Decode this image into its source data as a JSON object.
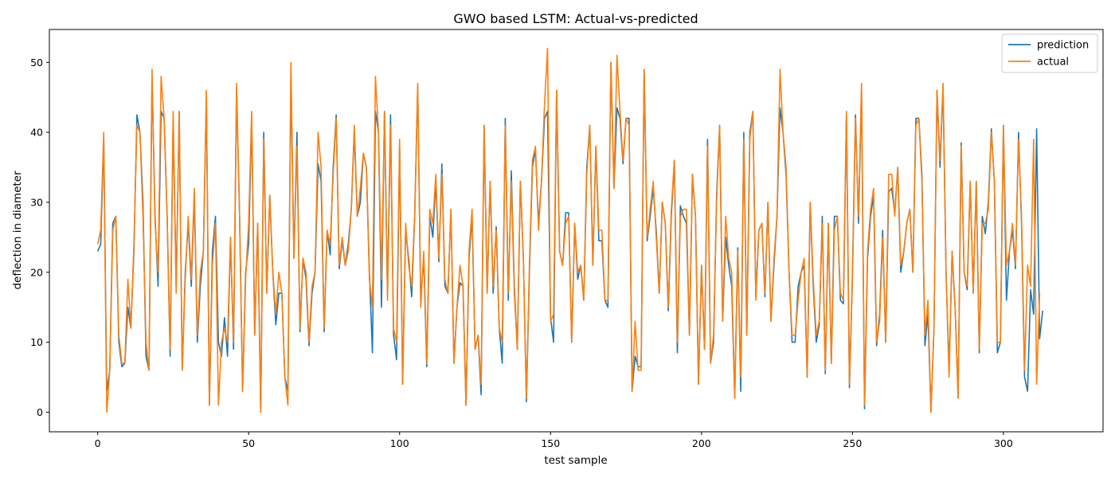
{
  "chart_data": {
    "type": "line",
    "title": "GWO based LSTM: Actual-vs-predicted",
    "xlabel": "test sample",
    "ylabel": "deflection in diameter",
    "xlim": [
      -16,
      333
    ],
    "ylim": [
      -2.8,
      54.7
    ],
    "xticks": [
      0,
      50,
      100,
      150,
      200,
      250,
      300
    ],
    "yticks": [
      0,
      10,
      20,
      30,
      40,
      50
    ],
    "grid": false,
    "legend_position": "top-right",
    "series": [
      {
        "name": "prediction",
        "color": "#1f77b4",
        "values": [
          23,
          24,
          39,
          3,
          6,
          27,
          28,
          10,
          6.5,
          7,
          15,
          12,
          23,
          42.5,
          40,
          30,
          8,
          6,
          48,
          28,
          18,
          43,
          42,
          28,
          8,
          42,
          18,
          43,
          6,
          20,
          27,
          18,
          31,
          10,
          18,
          23,
          45,
          1,
          23,
          28,
          10,
          8,
          13.5,
          8,
          25,
          9,
          46,
          28,
          3,
          20,
          24,
          42,
          11,
          27,
          0,
          40,
          17,
          31,
          20,
          12.5,
          17,
          17,
          5,
          3,
          48,
          22,
          40,
          11.5,
          22,
          19,
          9.5,
          17,
          20,
          35.5,
          33,
          11.5,
          26,
          22.5,
          35,
          42.5,
          20.5,
          24.5,
          21,
          24,
          29,
          40,
          28,
          30,
          37,
          35,
          20,
          8.5,
          43,
          40,
          15,
          43,
          17,
          42.5,
          11,
          7.5,
          38,
          4,
          26,
          22,
          16.5,
          28,
          46.5,
          16,
          22,
          6.5,
          28,
          25,
          33,
          21.5,
          35.5,
          18,
          17,
          29,
          7,
          15,
          18.5,
          18,
          1,
          22,
          28,
          9,
          11,
          2.5,
          41,
          17,
          33,
          17,
          26.5,
          12,
          7,
          42,
          16,
          34.5,
          18,
          9,
          33,
          22,
          1.5,
          20,
          35,
          37.5,
          27,
          33,
          42,
          43,
          13.5,
          10,
          46,
          23,
          21,
          28.5,
          28.5,
          10,
          27,
          19,
          21,
          16,
          35,
          41,
          21,
          38,
          24.5,
          24.5,
          16,
          15,
          50,
          32,
          43.5,
          42,
          35.5,
          42,
          42,
          3,
          8,
          6.5,
          6.5,
          49,
          24.5,
          28,
          32,
          26,
          17,
          30,
          27,
          14.5,
          28,
          36,
          8.5,
          29.5,
          28,
          27,
          11,
          34,
          28,
          4,
          21,
          9,
          39,
          7,
          10,
          31,
          41,
          13,
          25,
          21,
          18,
          2,
          23.5,
          3,
          40,
          11,
          40,
          43,
          16.5,
          26,
          27,
          16.5,
          30,
          13,
          21,
          28,
          43.5,
          40,
          34,
          20,
          10,
          10,
          18,
          20,
          21,
          5,
          30,
          18,
          10,
          12.5,
          28,
          5.5,
          27,
          7,
          28,
          28,
          16,
          15.5,
          42.5,
          3.5,
          20,
          42.5,
          27,
          46,
          0.5,
          22,
          28,
          31,
          9.5,
          14,
          26,
          10,
          31.5,
          32,
          28.5,
          35,
          20,
          23,
          27,
          29,
          20,
          42,
          42,
          34,
          9.5,
          14,
          0,
          12,
          46,
          35,
          46.5,
          20,
          6,
          23,
          15,
          2,
          38.5,
          20,
          17.5,
          33,
          17,
          33,
          8.5,
          28,
          25.5,
          30,
          40.5,
          33,
          8.5,
          10,
          41,
          16,
          23,
          26,
          20.5,
          40,
          27,
          5,
          3,
          17.5,
          14,
          40.5,
          10.5,
          14.5
        ]
      },
      {
        "name": "actual",
        "color": "#ff7f0e",
        "values": [
          24,
          26,
          40,
          0,
          6,
          26,
          28,
          11,
          7,
          7,
          19,
          12,
          24,
          41,
          40,
          28,
          10,
          6,
          49,
          27,
          20,
          48,
          42,
          28,
          9,
          43,
          17,
          43,
          6,
          19,
          28,
          19,
          32,
          11,
          20,
          23,
          46,
          1,
          21,
          27,
          1,
          10,
          12,
          10,
          25,
          10,
          47,
          28,
          3,
          19,
          27,
          43,
          11,
          27,
          0,
          39,
          17,
          31,
          20,
          14,
          20,
          17,
          5,
          1,
          50,
          22,
          38,
          12,
          22,
          20,
          10,
          18,
          20,
          40,
          35,
          12,
          26,
          24,
          34,
          42,
          21,
          25,
          21,
          23,
          29,
          41,
          28,
          32,
          37,
          35,
          19,
          15,
          48,
          40,
          19,
          43,
          16,
          41,
          12,
          10,
          39,
          4,
          27,
          21,
          18,
          28,
          47,
          15,
          23,
          7,
          29,
          27,
          34,
          22,
          34,
          19,
          17,
          29,
          7,
          15,
          21,
          18,
          1,
          23,
          29,
          9,
          11,
          4,
          41,
          17,
          33,
          18,
          26,
          12,
          10,
          41,
          17,
          33,
          17,
          9,
          33,
          22,
          2,
          21,
          36,
          38,
          26,
          33,
          44,
          52,
          13,
          14,
          46,
          23,
          21,
          27,
          28,
          10,
          27,
          20,
          21,
          16,
          34,
          41,
          21,
          38,
          26,
          26,
          16,
          16,
          50,
          32,
          51,
          43,
          36,
          42,
          41,
          3,
          13,
          6,
          6,
          49,
          25,
          29,
          33,
          25,
          17,
          30,
          27,
          15,
          29,
          36,
          10,
          28,
          29,
          29,
          11,
          34,
          28,
          4,
          21,
          9,
          38,
          7,
          11,
          30,
          41,
          13,
          28,
          22,
          20,
          2,
          23,
          5,
          39,
          11,
          39,
          43,
          16,
          26,
          27,
          17,
          30,
          13,
          22,
          28,
          49,
          40,
          35,
          20,
          11,
          11,
          16,
          20,
          22,
          5,
          30,
          19,
          11,
          13,
          27,
          6,
          27,
          7,
          26,
          28,
          17,
          16,
          43,
          4,
          19,
          42,
          28,
          47,
          1,
          23,
          29,
          32,
          10,
          13,
          25,
          10,
          34,
          34,
          28,
          35,
          21,
          23,
          27,
          29,
          20,
          41,
          42,
          33,
          11,
          16,
          0,
          12,
          46,
          36,
          47,
          20,
          5,
          23,
          15,
          2,
          38,
          20,
          18,
          33,
          17,
          33,
          9,
          27,
          27,
          29,
          40,
          33,
          10,
          10,
          41,
          21,
          23,
          27,
          21,
          39,
          28,
          6,
          21,
          18,
          39,
          4,
          17
        ]
      }
    ]
  }
}
